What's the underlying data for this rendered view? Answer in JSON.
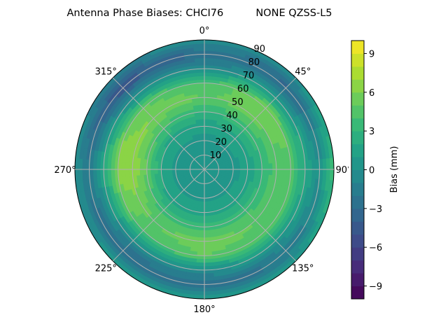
{
  "chart_data": {
    "type": "heatmap",
    "projection": "polar",
    "title": "Antenna Phase Biases: CHCI76          NONE QZSS-L5",
    "angle_tick_labels": [
      "0°",
      "45°",
      "90°",
      "135°",
      "180°",
      "225°",
      "270°",
      "315°"
    ],
    "radial_tick_labels": [
      "10",
      "20",
      "30",
      "40",
      "50",
      "60",
      "70",
      "80",
      "90"
    ],
    "radial_range": [
      0,
      90
    ],
    "azimuth_direction": "clockwise, 0° at top",
    "grid": true,
    "colormap": "viridis",
    "colorbar": {
      "label": "Bias (mm)",
      "range": [
        -10,
        10
      ],
      "levels": 20,
      "tick_values": [
        -9,
        -6,
        -3,
        0,
        3,
        6,
        9
      ],
      "tick_labels": [
        "−9",
        "−6",
        "−3",
        "0",
        "3",
        "6",
        "9"
      ],
      "position": "right"
    },
    "field": {
      "azimuths": [
        0,
        45,
        90,
        135,
        180,
        225,
        270,
        315
      ],
      "zenith": [
        0,
        10,
        20,
        30,
        40,
        50,
        60,
        70,
        80,
        90
      ],
      "bias_mm": [
        [
          0.5,
          0.5,
          0.5,
          0.5,
          0.5,
          0.5,
          0.5,
          0.5
        ],
        [
          0.5,
          0.5,
          0.5,
          0.5,
          0.5,
          0.5,
          0.5,
          0.5
        ],
        [
          0.8,
          0.8,
          0.8,
          0.8,
          0.8,
          0.8,
          0.8,
          0.8
        ],
        [
          1.2,
          1.5,
          1.2,
          1.5,
          1.5,
          1.5,
          2.0,
          1.5
        ],
        [
          3.0,
          3.5,
          3.0,
          3.5,
          3.5,
          3.5,
          5.0,
          4.0
        ],
        [
          5.0,
          5.5,
          4.5,
          5.0,
          5.5,
          5.0,
          7.0,
          6.0
        ],
        [
          4.0,
          6.0,
          4.5,
          4.5,
          5.0,
          4.0,
          6.5,
          5.0
        ],
        [
          0.0,
          1.0,
          2.0,
          1.0,
          0.0,
          -0.5,
          2.0,
          0.0
        ],
        [
          -3.0,
          -3.5,
          0.0,
          -2.0,
          -3.0,
          -3.0,
          -2.0,
          -5.0
        ],
        [
          0.0,
          0.0,
          4.0,
          0.5,
          1.0,
          0.5,
          0.0,
          -1.0
        ]
      ]
    }
  }
}
